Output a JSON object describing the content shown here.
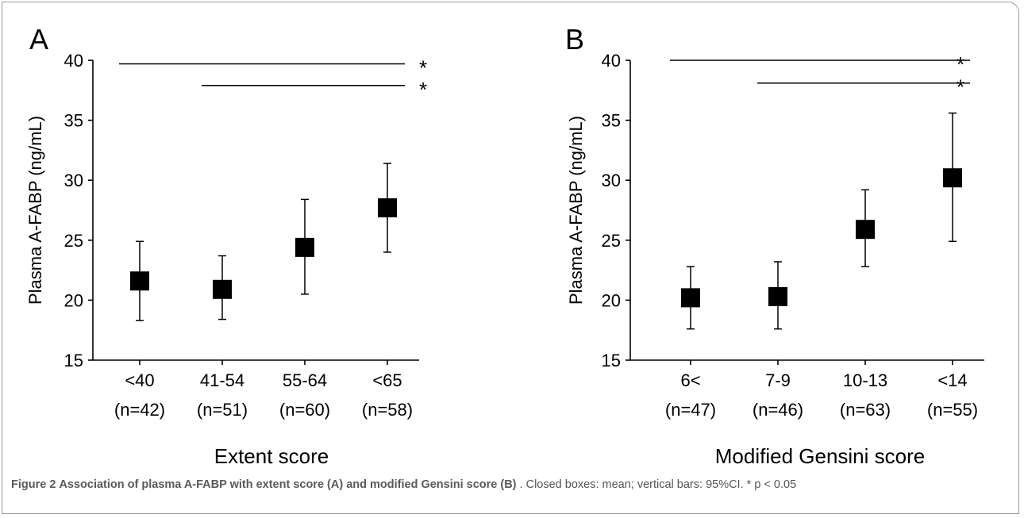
{
  "chart_data": [
    {
      "panel_label": "A",
      "type": "scatter",
      "ylabel": "Plasma A-FABP (ng/mL)",
      "xlabel": "Extent score",
      "ylim": [
        15,
        40
      ],
      "yticks": [
        15,
        20,
        25,
        30,
        35,
        40
      ],
      "categories": [
        "<40",
        "41-54",
        "55-64",
        "<65"
      ],
      "n_labels": [
        "(n=42)",
        "(n=51)",
        "(n=60)",
        "(n=58)"
      ],
      "mean": [
        21.6,
        20.9,
        24.4,
        27.7
      ],
      "ci_low": [
        18.3,
        18.4,
        20.5,
        24.0
      ],
      "ci_high": [
        24.9,
        23.7,
        28.4,
        31.4
      ],
      "significance": [
        {
          "from": 0,
          "to": 3,
          "y": 39.7,
          "label": "*"
        },
        {
          "from": 1,
          "to": 3,
          "y": 37.9,
          "label": "*"
        }
      ]
    },
    {
      "panel_label": "B",
      "type": "scatter",
      "ylabel": "Plasma  A-FABP (ng/mL)",
      "xlabel": "Modified Gensini score",
      "ylim": [
        15,
        40
      ],
      "yticks": [
        15,
        20,
        25,
        30,
        35,
        40
      ],
      "categories": [
        "6<",
        "7-9",
        "10-13",
        "<14"
      ],
      "n_labels": [
        "(n=47)",
        "(n=46)",
        "(n=63)",
        "(n=55)"
      ],
      "mean": [
        20.2,
        20.3,
        25.9,
        30.2
      ],
      "ci_low": [
        17.6,
        17.6,
        22.8,
        24.9
      ],
      "ci_high": [
        22.8,
        23.2,
        29.2,
        35.6
      ],
      "significance": [
        {
          "from": 0,
          "to": 3,
          "y": 40.0,
          "label": "*"
        },
        {
          "from": 1,
          "to": 3,
          "y": 38.1,
          "label": "*"
        }
      ]
    }
  ],
  "caption": {
    "figure_label": "Figure 2",
    "title": "Association of plasma A-FABP with extent score (A) and modified Gensini score (B)",
    "text": ". Closed boxes: mean; vertical bars: 95%CI. * p < 0.05"
  }
}
